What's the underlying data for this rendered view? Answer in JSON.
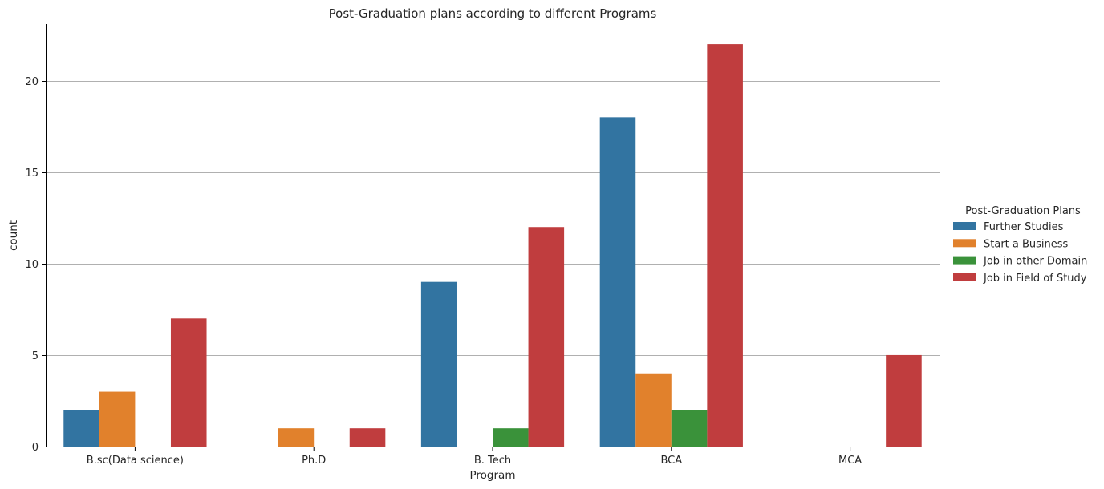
{
  "chart_data": {
    "type": "bar",
    "title": "Post-Graduation plans according to different Programs",
    "xlabel": "Program",
    "ylabel": "count",
    "categories": [
      "B.sc(Data science)",
      "Ph.D",
      "B. Tech",
      "BCA",
      "MCA"
    ],
    "series": [
      {
        "name": "Further Studies",
        "color": "#3274a1",
        "values": [
          2,
          0,
          9,
          18,
          0
        ]
      },
      {
        "name": "Start a Business",
        "color": "#e1812c",
        "values": [
          3,
          1,
          0,
          4,
          0
        ]
      },
      {
        "name": "Job in other Domain",
        "color": "#3a923a",
        "values": [
          0,
          0,
          1,
          2,
          0
        ]
      },
      {
        "name": "Job in Field of Study",
        "color": "#c03d3e",
        "values": [
          7,
          1,
          12,
          22,
          5
        ]
      }
    ],
    "ylim": [
      0,
      23.1
    ],
    "yticks": [
      0,
      5,
      10,
      15,
      20
    ],
    "grid": "y",
    "legend_title": "Post-Graduation Plans",
    "legend_position": "right"
  }
}
